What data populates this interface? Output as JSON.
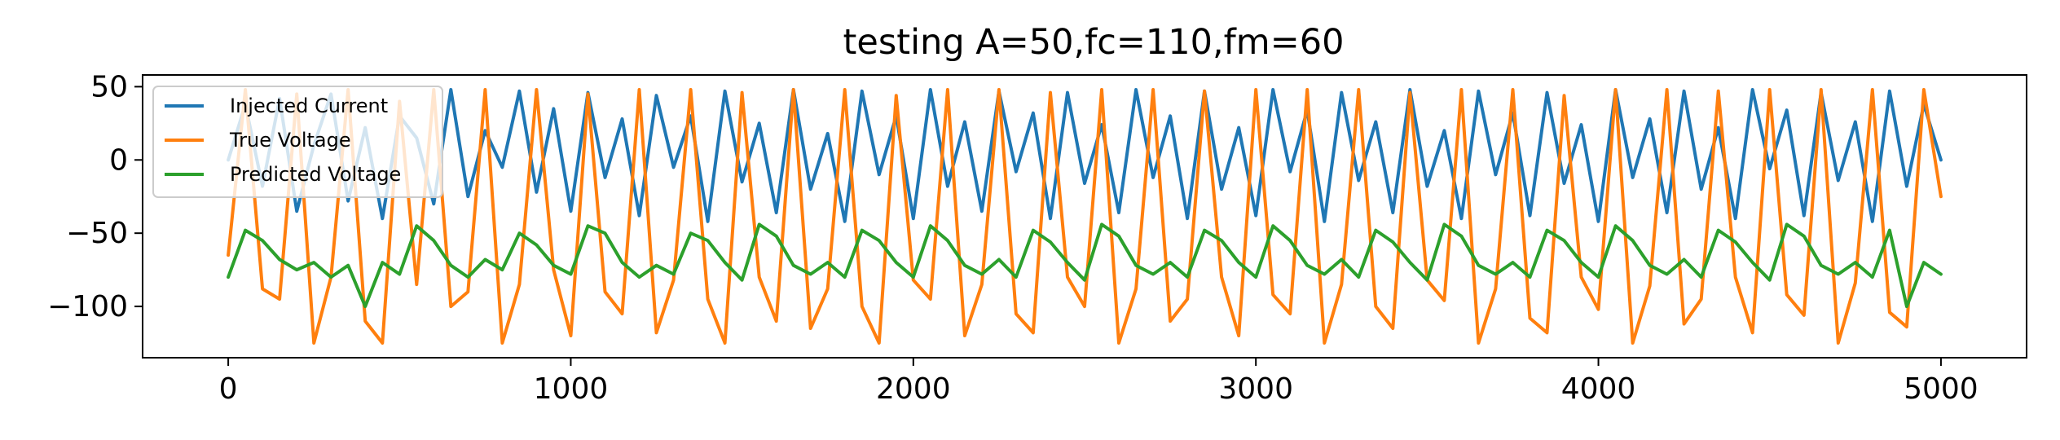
{
  "chart_data": {
    "type": "line",
    "title": "testing A=50,fc=110,fm=60",
    "xlabel": "",
    "ylabel": "",
    "xlim": [
      -250,
      5250
    ],
    "ylim": [
      -135,
      58
    ],
    "x_ticks": [
      0,
      1000,
      2000,
      3000,
      4000,
      5000
    ],
    "x_tick_labels": [
      "0",
      "1000",
      "2000",
      "3000",
      "4000",
      "5000"
    ],
    "y_ticks": [
      50,
      0,
      -50,
      -100
    ],
    "y_tick_labels": [
      "50",
      "0",
      "−50",
      "−100"
    ],
    "grid": false,
    "legend_position": "top-left",
    "x_range": [
      0,
      5000
    ],
    "series": [
      {
        "name": "Injected Current",
        "color": "#1f77b4",
        "x": [
          0,
          50,
          100,
          150,
          200,
          250,
          300,
          350,
          400,
          450,
          500,
          550,
          600,
          650,
          700,
          750,
          800,
          850,
          900,
          950,
          1000,
          1050,
          1100,
          1150,
          1200,
          1250,
          1300,
          1350,
          1400,
          1450,
          1500,
          1550,
          1600,
          1650,
          1700,
          1750,
          1800,
          1850,
          1900,
          1950,
          2000,
          2050,
          2100,
          2150,
          2200,
          2250,
          2300,
          2350,
          2400,
          2450,
          2500,
          2550,
          2600,
          2650,
          2700,
          2750,
          2800,
          2850,
          2900,
          2950,
          3000,
          3050,
          3100,
          3150,
          3200,
          3250,
          3300,
          3350,
          3400,
          3450,
          3500,
          3550,
          3600,
          3650,
          3700,
          3750,
          3800,
          3850,
          3900,
          3950,
          4000,
          4050,
          4100,
          4150,
          4200,
          4250,
          4300,
          4350,
          4400,
          4450,
          4500,
          4550,
          4600,
          4650,
          4700,
          4750,
          4800,
          4850,
          4900,
          4950,
          5000
        ],
        "y": [
          0,
          38,
          -18,
          42,
          -35,
          10,
          45,
          -28,
          22,
          -40,
          30,
          15,
          -30,
          48,
          -25,
          20,
          -5,
          47,
          -22,
          35,
          -35,
          46,
          -12,
          28,
          -38,
          44,
          -5,
          30,
          -42,
          47,
          -15,
          25,
          -36,
          48,
          -20,
          18,
          -42,
          47,
          -10,
          30,
          -40,
          48,
          -18,
          26,
          -35,
          47,
          -8,
          32,
          -40,
          46,
          -16,
          24,
          -36,
          48,
          -12,
          30,
          -40,
          47,
          -20,
          22,
          -38,
          48,
          -8,
          34,
          -42,
          46,
          -14,
          26,
          -36,
          48,
          -18,
          20,
          -40,
          47,
          -10,
          32,
          -38,
          46,
          -16,
          24,
          -42,
          48,
          -12,
          28,
          -36,
          47,
          -20,
          22,
          -40,
          48,
          -6,
          34,
          -38,
          46,
          -14,
          26,
          -42,
          47,
          -18,
          38,
          0
        ]
      },
      {
        "name": "True Voltage",
        "color": "#ff7f0e",
        "x": [
          0,
          50,
          100,
          150,
          200,
          250,
          300,
          350,
          400,
          450,
          500,
          550,
          600,
          650,
          700,
          750,
          800,
          850,
          900,
          950,
          1000,
          1050,
          1100,
          1150,
          1200,
          1250,
          1300,
          1350,
          1400,
          1450,
          1500,
          1550,
          1600,
          1650,
          1700,
          1750,
          1800,
          1850,
          1900,
          1950,
          2000,
          2050,
          2100,
          2150,
          2200,
          2250,
          2300,
          2350,
          2400,
          2450,
          2500,
          2550,
          2600,
          2650,
          2700,
          2750,
          2800,
          2850,
          2900,
          2950,
          3000,
          3050,
          3100,
          3150,
          3200,
          3250,
          3300,
          3350,
          3400,
          3450,
          3500,
          3550,
          3600,
          3650,
          3700,
          3750,
          3800,
          3850,
          3900,
          3950,
          4000,
          4050,
          4100,
          4150,
          4200,
          4250,
          4300,
          4350,
          4400,
          4450,
          4500,
          4550,
          4600,
          4650,
          4700,
          4750,
          4800,
          4850,
          4900,
          4950,
          5000
        ],
        "y": [
          -65,
          48,
          -88,
          -95,
          45,
          -125,
          -80,
          48,
          -110,
          -125,
          40,
          -85,
          48,
          -100,
          -90,
          48,
          -125,
          -85,
          48,
          -75,
          -120,
          45,
          -90,
          -105,
          48,
          -118,
          -82,
          48,
          -95,
          -125,
          46,
          -80,
          -110,
          48,
          -115,
          -88,
          48,
          -100,
          -125,
          44,
          -82,
          -95,
          48,
          -120,
          -85,
          48,
          -105,
          -118,
          46,
          -80,
          -100,
          48,
          -125,
          -88,
          48,
          -110,
          -95,
          47,
          -80,
          -120,
          48,
          -92,
          -105,
          48,
          -125,
          -85,
          48,
          -100,
          -115,
          46,
          -82,
          -96,
          48,
          -125,
          -88,
          48,
          -108,
          -118,
          44,
          -80,
          -102,
          48,
          -125,
          -86,
          48,
          -112,
          -95,
          47,
          -80,
          -118,
          48,
          -92,
          -106,
          48,
          -125,
          -84,
          48,
          -104,
          -114,
          48,
          -25
        ]
      },
      {
        "name": "Predicted Voltage",
        "color": "#2ca02c",
        "x": [
          0,
          50,
          100,
          150,
          200,
          250,
          300,
          350,
          400,
          450,
          500,
          550,
          600,
          650,
          700,
          750,
          800,
          850,
          900,
          950,
          1000,
          1050,
          1100,
          1150,
          1200,
          1250,
          1300,
          1350,
          1400,
          1450,
          1500,
          1550,
          1600,
          1650,
          1700,
          1750,
          1800,
          1850,
          1900,
          1950,
          2000,
          2050,
          2100,
          2150,
          2200,
          2250,
          2300,
          2350,
          2400,
          2450,
          2500,
          2550,
          2600,
          2650,
          2700,
          2750,
          2800,
          2850,
          2900,
          2950,
          3000,
          3050,
          3100,
          3150,
          3200,
          3250,
          3300,
          3350,
          3400,
          3450,
          3500,
          3550,
          3600,
          3650,
          3700,
          3750,
          3800,
          3850,
          3900,
          3950,
          4000,
          4050,
          4100,
          4150,
          4200,
          4250,
          4300,
          4350,
          4400,
          4450,
          4500,
          4550,
          4600,
          4650,
          4700,
          4750,
          4800,
          4850,
          4900,
          4950,
          5000
        ],
        "y": [
          -80,
          -48,
          -55,
          -68,
          -75,
          -70,
          -80,
          -72,
          -100,
          -70,
          -78,
          -45,
          -55,
          -72,
          -80,
          -68,
          -75,
          -50,
          -58,
          -72,
          -78,
          -45,
          -50,
          -70,
          -80,
          -72,
          -78,
          -50,
          -55,
          -70,
          -82,
          -44,
          -52,
          -72,
          -78,
          -70,
          -80,
          -48,
          -55,
          -70,
          -80,
          -45,
          -55,
          -72,
          -78,
          -68,
          -80,
          -48,
          -56,
          -70,
          -82,
          -44,
          -52,
          -72,
          -78,
          -70,
          -80,
          -48,
          -55,
          -70,
          -80,
          -45,
          -55,
          -72,
          -78,
          -68,
          -80,
          -48,
          -56,
          -70,
          -82,
          -44,
          -52,
          -72,
          -78,
          -70,
          -80,
          -48,
          -55,
          -70,
          -80,
          -45,
          -55,
          -72,
          -78,
          -68,
          -80,
          -48,
          -56,
          -70,
          -82,
          -44,
          -52,
          -72,
          -78,
          -70,
          -80,
          -48,
          -100,
          -70,
          -78
        ]
      }
    ]
  }
}
